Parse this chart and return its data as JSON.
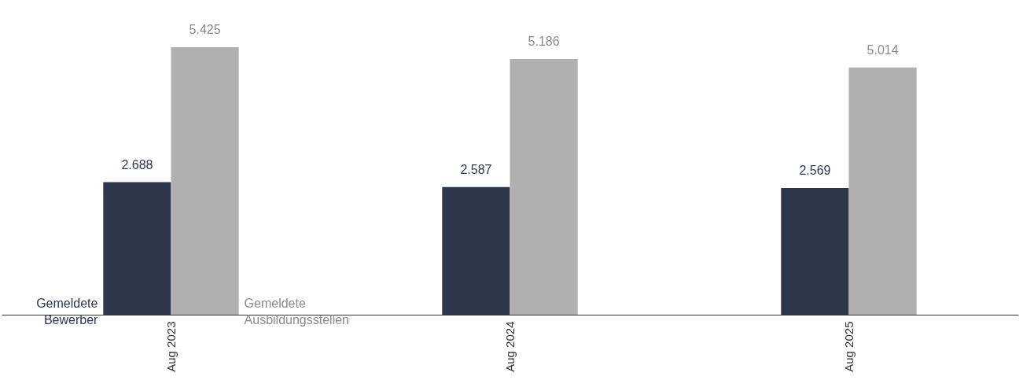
{
  "chart_data": {
    "type": "bar",
    "categories": [
      "Aug 2023",
      "Aug 2024",
      "Aug 2025"
    ],
    "series": [
      {
        "name": "Gemeldete Bewerber",
        "color": "#2e364b",
        "values": [
          2688,
          2587,
          2569
        ],
        "value_labels": [
          "2.688",
          "2.587",
          "2.569"
        ]
      },
      {
        "name": "Gemeldete Ausbildungsstellen",
        "color": "#b0b0b0",
        "values": [
          5425,
          5186,
          5014
        ],
        "value_labels": [
          "5.425",
          "5.186",
          "5.014"
        ]
      }
    ],
    "legend": false,
    "grid": false
  }
}
